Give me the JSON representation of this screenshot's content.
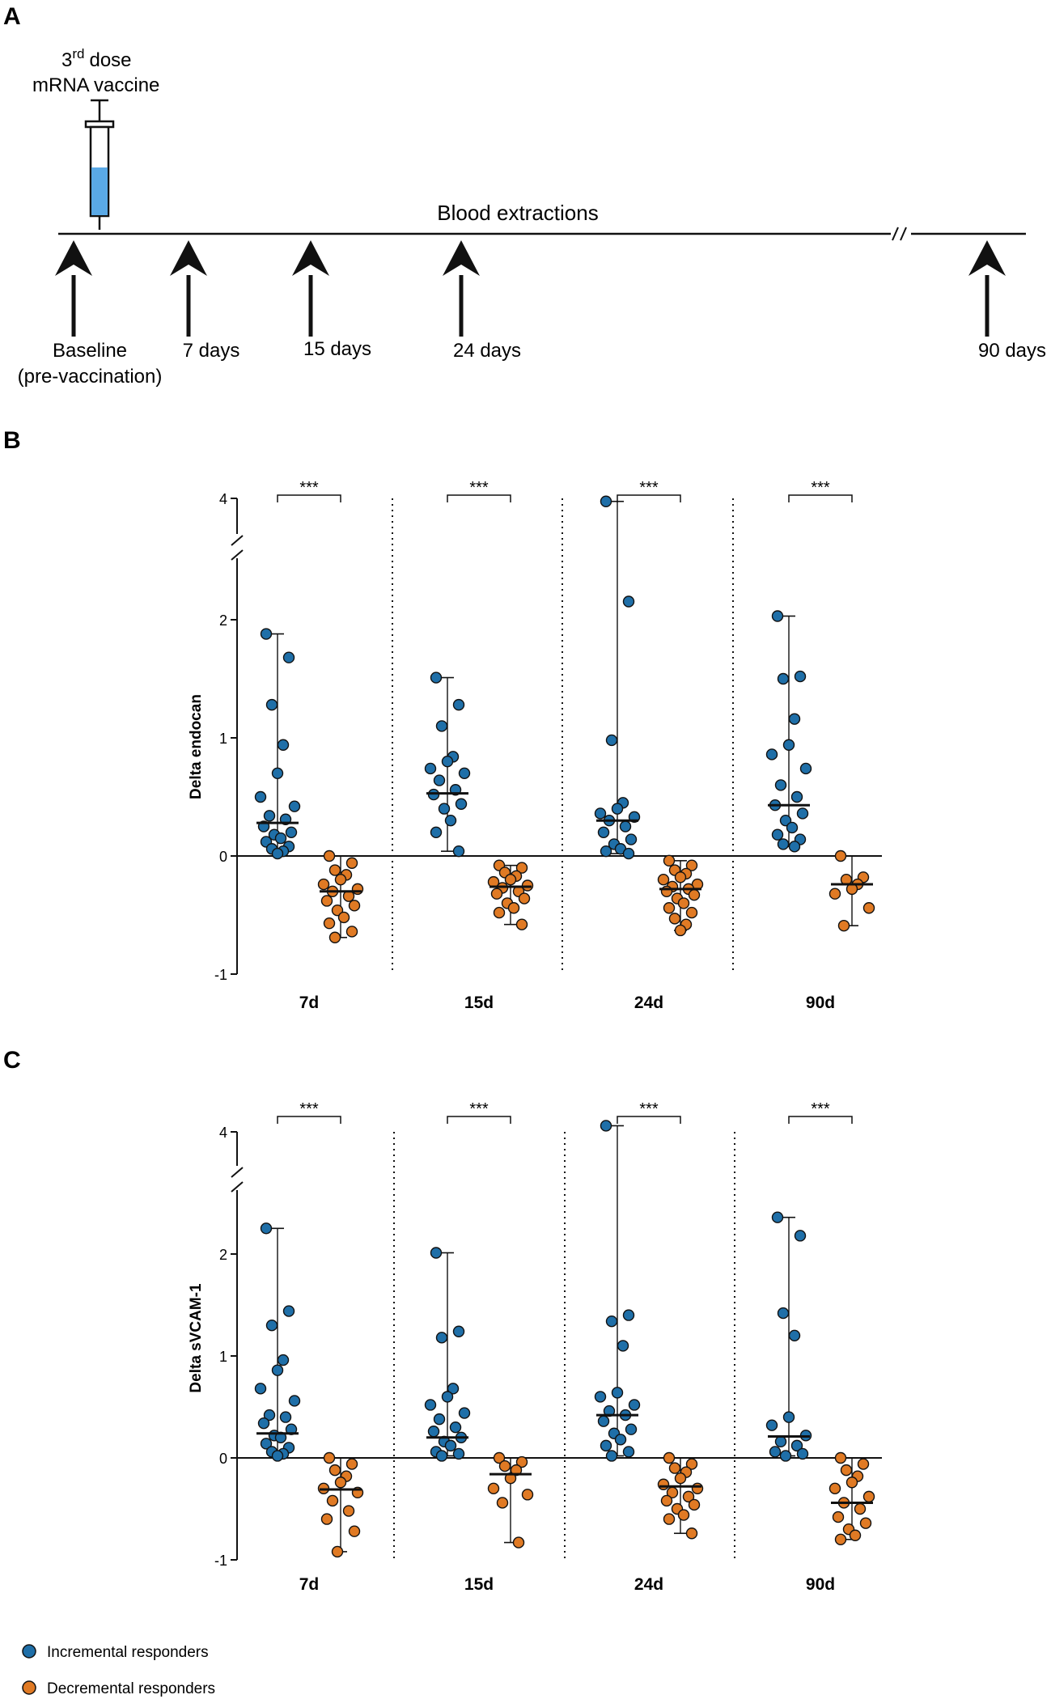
{
  "colors": {
    "incremental": "#1f6fa8",
    "decremental": "#e07a24",
    "syringe_fill": "#5aa9e6",
    "ink": "#111111"
  },
  "panel_a": {
    "label": "A",
    "dose_superscript": "rd",
    "dose_number": "3",
    "dose_word": "dose",
    "vaccine": "mRNA vaccine",
    "timeline_label": "Blood extractions",
    "timepoints": [
      "Baseline",
      "7 days",
      "15 days",
      "24 days",
      "90 days"
    ],
    "baseline_sub": "(pre-vaccination)"
  },
  "panel_b": {
    "label": "B",
    "ylabel": "Delta endocan"
  },
  "panel_c": {
    "label": "C",
    "ylabel": "Delta sVCAM-1"
  },
  "significance": "***",
  "legend": {
    "incremental": "Incremental responders",
    "decremental": "Decremental responders"
  },
  "chart_data": [
    {
      "type": "scatter",
      "title": "Delta endocan",
      "ylabel": "Delta endocan",
      "categories": [
        "7d",
        "15d",
        "24d",
        "90d"
      ],
      "yticks": [
        -1,
        0,
        1,
        2,
        4
      ],
      "ylim": [
        -1,
        4
      ],
      "axis_break": "between 2 and 4",
      "series": [
        {
          "name": "Incremental responders",
          "median": [
            0.28,
            0.53,
            0.3,
            0.43
          ],
          "range": [
            [
              0.02,
              1.88
            ],
            [
              0.04,
              1.51
            ],
            [
              0.02,
              3.95
            ],
            [
              0.08,
              2.06
            ]
          ],
          "values": [
            [
              1.88,
              1.68,
              1.28,
              0.94,
              0.7,
              0.5,
              0.42,
              0.34,
              0.31,
              0.25,
              0.2,
              0.18,
              0.15,
              0.12,
              0.08,
              0.06,
              0.04,
              0.02
            ],
            [
              1.51,
              1.28,
              1.1,
              0.84,
              0.8,
              0.74,
              0.7,
              0.64,
              0.56,
              0.52,
              0.44,
              0.4,
              0.3,
              0.2,
              0.04
            ],
            [
              3.95,
              2.3,
              0.98,
              0.45,
              0.4,
              0.36,
              0.33,
              0.3,
              0.25,
              0.2,
              0.14,
              0.1,
              0.06,
              0.04,
              0.02
            ],
            [
              2.06,
              1.52,
              1.5,
              1.16,
              0.94,
              0.86,
              0.74,
              0.6,
              0.5,
              0.43,
              0.36,
              0.3,
              0.24,
              0.18,
              0.14,
              0.1,
              0.08
            ]
          ]
        },
        {
          "name": "Decremental responders",
          "median": [
            -0.3,
            -0.26,
            -0.28,
            -0.24
          ],
          "range": [
            [
              -0.69,
              0.0
            ],
            [
              -0.58,
              -0.08
            ],
            [
              -0.63,
              -0.04
            ],
            [
              -0.59,
              0.0
            ]
          ],
          "values": [
            [
              0.0,
              -0.06,
              -0.12,
              -0.16,
              -0.2,
              -0.24,
              -0.28,
              -0.3,
              -0.34,
              -0.38,
              -0.42,
              -0.46,
              -0.52,
              -0.57,
              -0.64,
              -0.69
            ],
            [
              -0.08,
              -0.1,
              -0.14,
              -0.17,
              -0.2,
              -0.22,
              -0.25,
              -0.27,
              -0.3,
              -0.32,
              -0.36,
              -0.4,
              -0.44,
              -0.48,
              -0.58
            ],
            [
              -0.04,
              -0.08,
              -0.12,
              -0.15,
              -0.18,
              -0.2,
              -0.24,
              -0.26,
              -0.28,
              -0.3,
              -0.33,
              -0.36,
              -0.4,
              -0.44,
              -0.48,
              -0.53,
              -0.58,
              -0.63
            ],
            [
              0.0,
              -0.18,
              -0.2,
              -0.24,
              -0.28,
              -0.32,
              -0.44,
              -0.59
            ]
          ]
        }
      ]
    },
    {
      "type": "scatter",
      "title": "Delta sVCAM-1",
      "ylabel": "Delta sVCAM-1",
      "categories": [
        "7d",
        "15d",
        "24d",
        "90d"
      ],
      "yticks": [
        -1,
        0,
        1,
        2,
        4
      ],
      "ylim": [
        -1,
        4
      ],
      "axis_break": "between 2 and 4",
      "series": [
        {
          "name": "Incremental responders",
          "median": [
            0.24,
            0.2,
            0.42,
            0.21
          ],
          "range": [
            [
              0.02,
              2.42
            ],
            [
              0.02,
              2.02
            ],
            [
              0.02,
              4.1
            ],
            [
              0.02,
              2.6
            ]
          ],
          "values": [
            [
              2.42,
              1.44,
              1.3,
              0.96,
              0.86,
              0.68,
              0.56,
              0.42,
              0.4,
              0.34,
              0.28,
              0.22,
              0.2,
              0.14,
              0.1,
              0.06,
              0.04,
              0.02
            ],
            [
              2.02,
              1.24,
              1.18,
              0.68,
              0.6,
              0.52,
              0.44,
              0.38,
              0.3,
              0.26,
              0.2,
              0.16,
              0.12,
              0.06,
              0.04,
              0.02
            ],
            [
              4.1,
              1.4,
              1.34,
              1.1,
              0.64,
              0.6,
              0.52,
              0.46,
              0.42,
              0.36,
              0.28,
              0.24,
              0.18,
              0.12,
              0.06,
              0.02
            ],
            [
              2.6,
              2.3,
              1.42,
              1.2,
              0.4,
              0.32,
              0.22,
              0.16,
              0.12,
              0.06,
              0.04,
              0.02
            ]
          ]
        },
        {
          "name": "Decremental responders",
          "median": [
            -0.31,
            -0.16,
            -0.28,
            -0.44
          ],
          "range": [
            [
              -0.92,
              0.0
            ],
            [
              -0.83,
              0.0
            ],
            [
              -0.74,
              0.0
            ],
            [
              -0.8,
              0.0
            ]
          ],
          "values": [
            [
              0.0,
              -0.06,
              -0.12,
              -0.18,
              -0.24,
              -0.3,
              -0.34,
              -0.42,
              -0.52,
              -0.6,
              -0.72,
              -0.92
            ],
            [
              0.0,
              -0.04,
              -0.08,
              -0.12,
              -0.2,
              -0.3,
              -0.36,
              -0.44,
              -0.83
            ],
            [
              0.0,
              -0.06,
              -0.1,
              -0.14,
              -0.2,
              -0.26,
              -0.3,
              -0.34,
              -0.38,
              -0.42,
              -0.46,
              -0.5,
              -0.56,
              -0.6,
              -0.74
            ],
            [
              0.0,
              -0.06,
              -0.12,
              -0.18,
              -0.24,
              -0.3,
              -0.38,
              -0.44,
              -0.5,
              -0.58,
              -0.64,
              -0.7,
              -0.76,
              -0.8
            ]
          ]
        }
      ]
    }
  ]
}
